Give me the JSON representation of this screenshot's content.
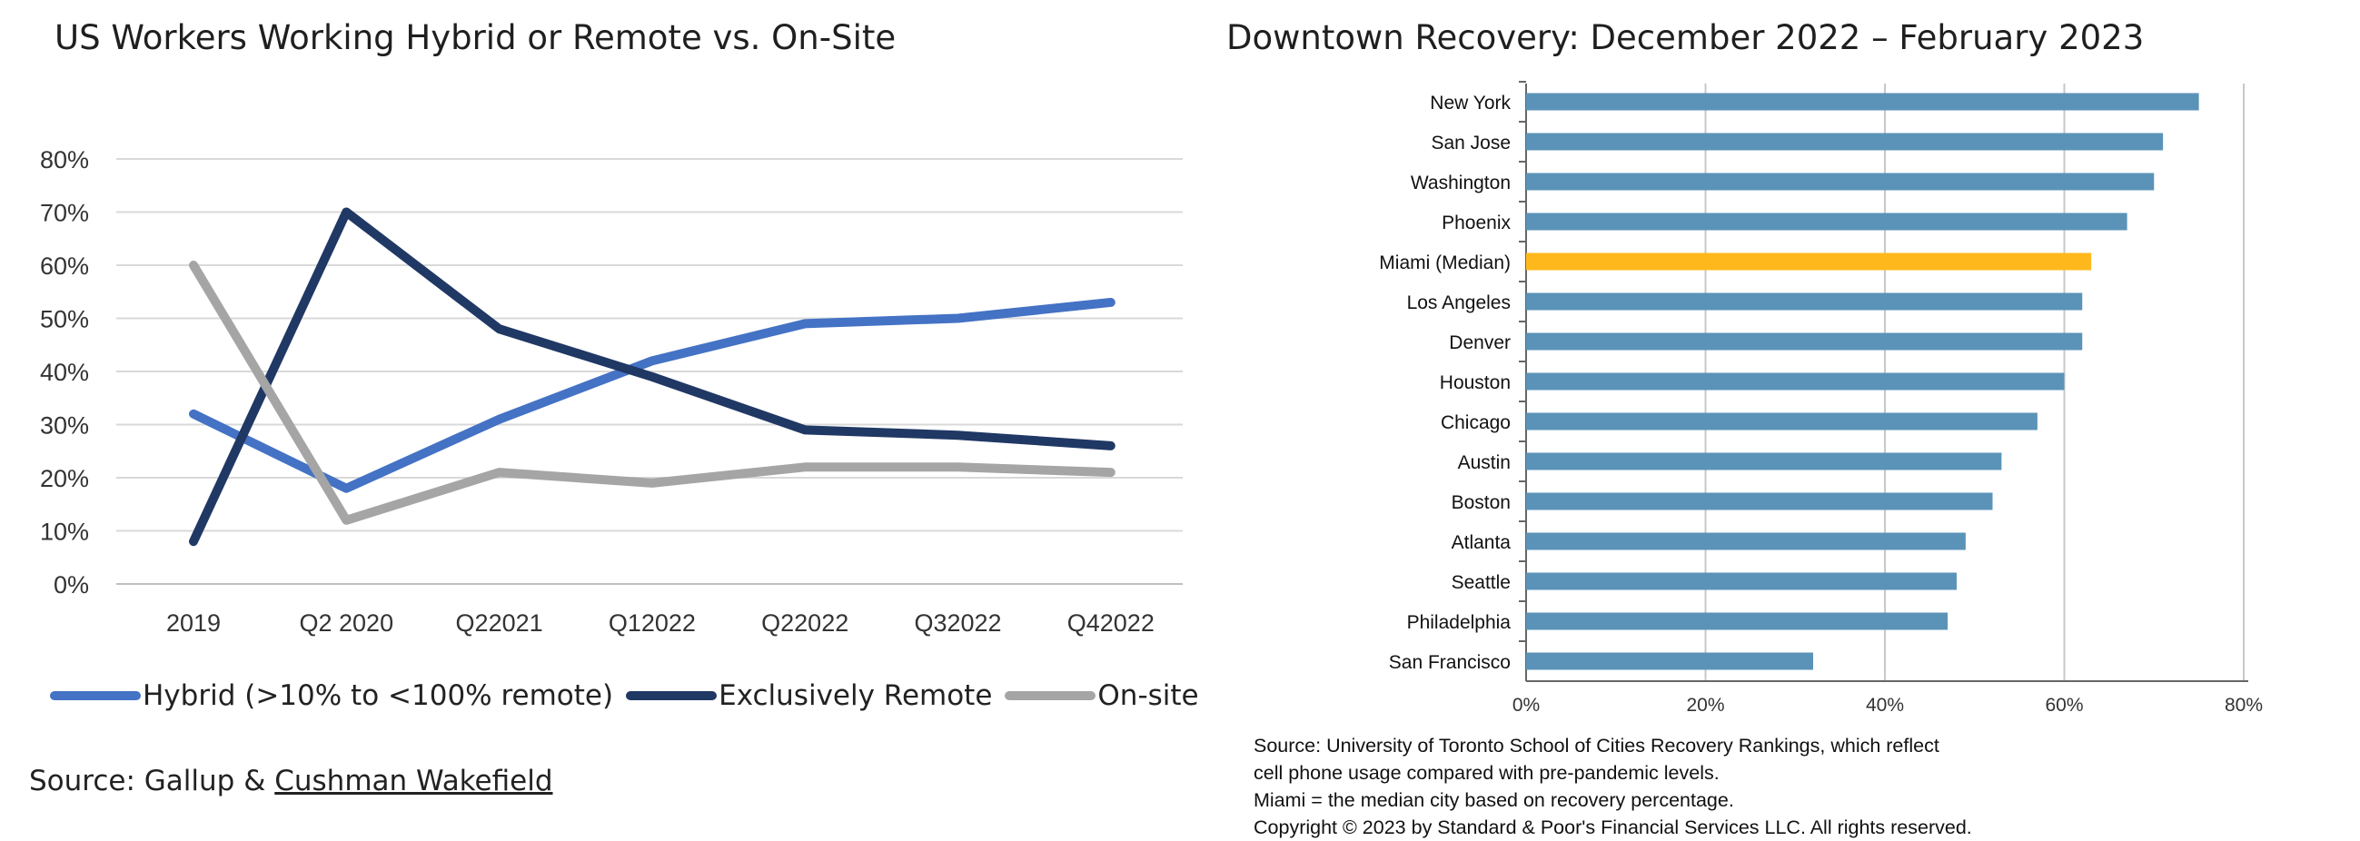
{
  "left_panel": {
    "source_prefix": "Source: Gallup & ",
    "source_link": "Cushman Wakefield"
  },
  "right_panel": {
    "notes": [
      "Source: University of Toronto School of Cities Recovery Rankings, which reflect",
      "cell phone usage compared with pre-pandemic levels.",
      "Miami = the median city based on recovery percentage.",
      "Copyright © 2023 by Standard & Poor's Financial Services LLC. All rights reserved."
    ]
  },
  "chart_data": [
    {
      "type": "line",
      "title": "US Workers Working Hybrid or Remote vs. On-Site",
      "x": [
        "2019",
        "Q2 2020",
        "Q22021",
        "Q12022",
        "Q22022",
        "Q32022",
        "Q42022"
      ],
      "ylim": [
        0,
        80
      ],
      "yticks": [
        "0%",
        "10%",
        "20%",
        "30%",
        "40%",
        "50%",
        "60%",
        "70%",
        "80%"
      ],
      "grid": true,
      "legend": "bottom",
      "series": [
        {
          "name": "Hybrid (>10% to <100% remote)",
          "color": "#4472c4",
          "values": [
            32,
            18,
            31,
            42,
            49,
            50,
            53
          ]
        },
        {
          "name": "Exclusively Remote",
          "color": "#203864",
          "values": [
            8,
            70,
            48,
            39,
            29,
            28,
            26
          ]
        },
        {
          "name": "On-site",
          "color": "#a5a5a5",
          "values": [
            60,
            12,
            21,
            19,
            22,
            22,
            21
          ]
        }
      ]
    },
    {
      "type": "bar",
      "orientation": "horizontal",
      "title": "Downtown Recovery: December 2022 – February 2023",
      "categories": [
        "New York",
        "San Jose",
        "Washington",
        "Phoenix",
        "Miami (Median)",
        "Los Angeles",
        "Denver",
        "Houston",
        "Chicago",
        "Austin",
        "Boston",
        "Atlanta",
        "Seattle",
        "Philadelphia",
        "San Francisco"
      ],
      "values": [
        75,
        71,
        70,
        67,
        63,
        62,
        62,
        60,
        57,
        53,
        52,
        49,
        48,
        47,
        32
      ],
      "xlim": [
        0,
        80
      ],
      "xticks": [
        "0%",
        "20%",
        "40%",
        "60%",
        "80%"
      ],
      "grid": true,
      "bar_color": "#5b93b8",
      "highlight_color": "#ffb81c",
      "highlight_category": "Miami (Median)"
    }
  ]
}
